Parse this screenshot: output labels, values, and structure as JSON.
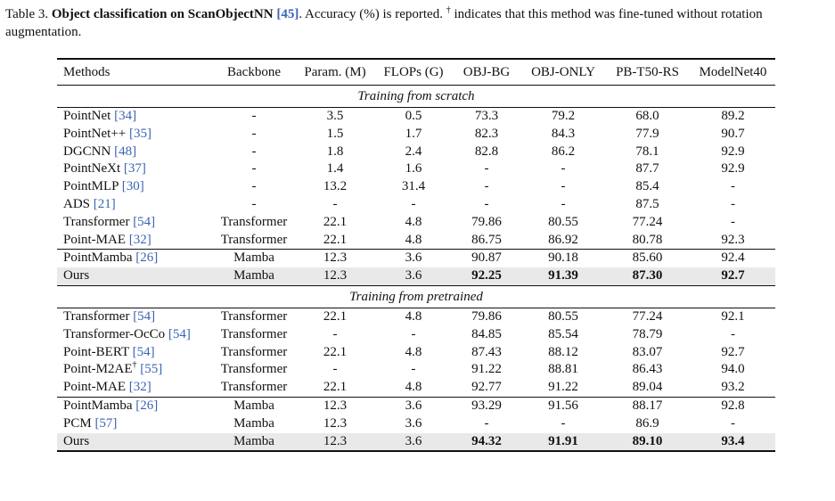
{
  "caption": {
    "label": "Table 3.",
    "title": "Object classification on ScanObjectNN",
    "title_cite": "[45]",
    "text": ". Accuracy (%) is reported.",
    "dagger": "†",
    "note": "indicates that this method was fine-tuned without rotation augmentation."
  },
  "headers": [
    "Methods",
    "Backbone",
    "Param. (M)",
    "FLOPs (G)",
    "OBJ-BG",
    "OBJ-ONLY",
    "PB-T50-RS",
    "ModelNet40"
  ],
  "sections": [
    {
      "title": "Training from scratch",
      "groups": [
        [
          {
            "name": "PointNet",
            "cite": "[34]",
            "backbone": "-",
            "param": "3.5",
            "flops": "0.5",
            "objbg": "73.3",
            "objonly": "79.2",
            "pb": "68.0",
            "mn40": "89.2"
          },
          {
            "name": "PointNet++",
            "cite": "[35]",
            "backbone": "-",
            "param": "1.5",
            "flops": "1.7",
            "objbg": "82.3",
            "objonly": "84.3",
            "pb": "77.9",
            "mn40": "90.7"
          },
          {
            "name": "DGCNN",
            "cite": "[48]",
            "backbone": "-",
            "param": "1.8",
            "flops": "2.4",
            "objbg": "82.8",
            "objonly": "86.2",
            "pb": "78.1",
            "mn40": "92.9"
          },
          {
            "name": "PointNeXt",
            "cite": "[37]",
            "backbone": "-",
            "param": "1.4",
            "flops": "1.6",
            "objbg": "-",
            "objonly": "-",
            "pb": "87.7",
            "mn40": "92.9"
          },
          {
            "name": "PointMLP",
            "cite": "[30]",
            "backbone": "-",
            "param": "13.2",
            "flops": "31.4",
            "objbg": "-",
            "objonly": "-",
            "pb": "85.4",
            "mn40": "-"
          },
          {
            "name": "ADS",
            "cite": "[21]",
            "backbone": "-",
            "param": "-",
            "flops": "-",
            "objbg": "-",
            "objonly": "-",
            "pb": "87.5",
            "mn40": "-"
          },
          {
            "name": "Transformer",
            "cite": "[54]",
            "backbone": "Transformer",
            "param": "22.1",
            "flops": "4.8",
            "objbg": "79.86",
            "objonly": "80.55",
            "pb": "77.24",
            "mn40": "-"
          },
          {
            "name": "Point-MAE",
            "cite": "[32]",
            "backbone": "Transformer",
            "param": "22.1",
            "flops": "4.8",
            "objbg": "86.75",
            "objonly": "86.92",
            "pb": "80.78",
            "mn40": "92.3"
          }
        ],
        [
          {
            "name": "PointMamba",
            "cite": "[26]",
            "backbone": "Mamba",
            "param": "12.3",
            "flops": "3.6",
            "objbg": "90.87",
            "objonly": "90.18",
            "pb": "85.60",
            "mn40": "92.4"
          },
          {
            "name": "Ours",
            "cite": "",
            "backbone": "Mamba",
            "param": "12.3",
            "flops": "3.6",
            "objbg": "92.25",
            "objonly": "91.39",
            "pb": "87.30",
            "mn40": "92.7",
            "highlight": true
          }
        ]
      ]
    },
    {
      "title": "Training from pretrained",
      "groups": [
        [
          {
            "name": "Transformer",
            "cite": "[54]",
            "backbone": "Transformer",
            "param": "22.1",
            "flops": "4.8",
            "objbg": "79.86",
            "objonly": "80.55",
            "pb": "77.24",
            "mn40": "92.1"
          },
          {
            "name": "Transformer-OcCo",
            "cite": "[54]",
            "backbone": "Transformer",
            "param": "-",
            "flops": "-",
            "objbg": "84.85",
            "objonly": "85.54",
            "pb": "78.79",
            "mn40": "-"
          },
          {
            "name": "Point-BERT",
            "cite": "[54]",
            "backbone": "Transformer",
            "param": "22.1",
            "flops": "4.8",
            "objbg": "87.43",
            "objonly": "88.12",
            "pb": "83.07",
            "mn40": "92.7"
          },
          {
            "name": "Point-M2AE",
            "dagger": "†",
            "cite": "[55]",
            "backbone": "Transformer",
            "param": "-",
            "flops": "-",
            "objbg": "91.22",
            "objonly": "88.81",
            "pb": "86.43",
            "mn40": "94.0"
          },
          {
            "name": "Point-MAE",
            "cite": "[32]",
            "backbone": "Transformer",
            "param": "22.1",
            "flops": "4.8",
            "objbg": "92.77",
            "objonly": "91.22",
            "pb": "89.04",
            "mn40": "93.2"
          }
        ],
        [
          {
            "name": "PointMamba",
            "cite": "[26]",
            "backbone": "Mamba",
            "param": "12.3",
            "flops": "3.6",
            "objbg": "93.29",
            "objonly": "91.56",
            "pb": "88.17",
            "mn40": "92.8"
          },
          {
            "name": "PCM",
            "cite": "[57]",
            "backbone": "Mamba",
            "param": "12.3",
            "flops": "3.6",
            "objbg": "-",
            "objonly": "-",
            "pb": "86.9",
            "mn40": "-"
          },
          {
            "name": "Ours",
            "cite": "",
            "backbone": "Mamba",
            "param": "12.3",
            "flops": "3.6",
            "objbg": "94.32",
            "objonly": "91.91",
            "pb": "89.10",
            "mn40": "93.4",
            "highlight": true
          }
        ]
      ]
    }
  ]
}
